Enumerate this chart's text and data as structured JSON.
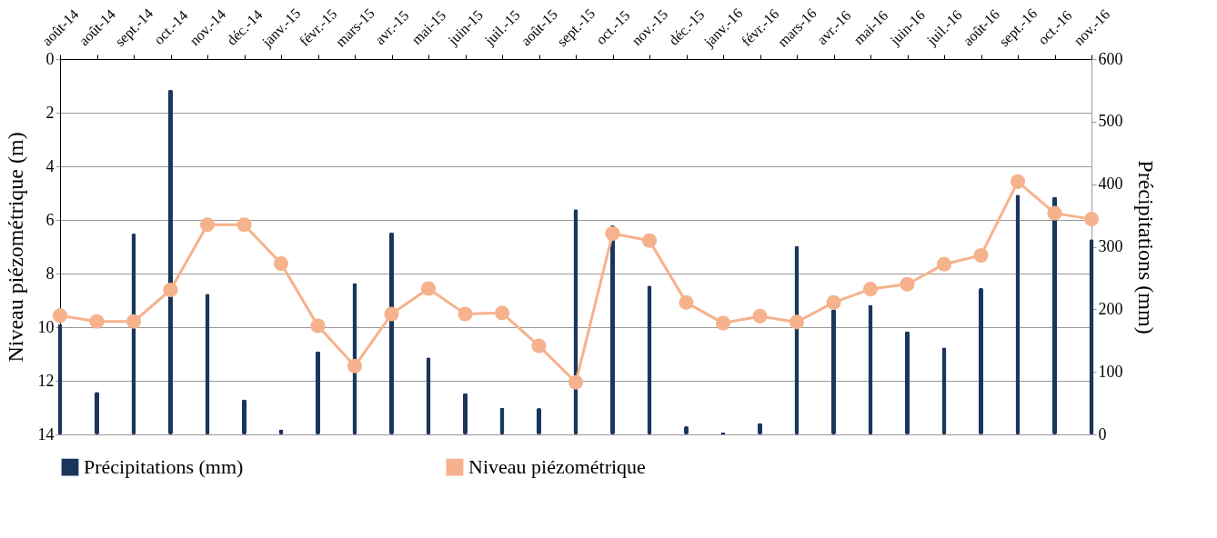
{
  "chart_data": {
    "type": "bar",
    "categories": [
      "août-14",
      "août-14",
      "sept.-14",
      "oct.-14",
      "nov.-14",
      "déc.-14",
      "janv.-15",
      "févr.-15",
      "mars-15",
      "avr.-15",
      "mai-15",
      "juin-15",
      "juil.-15",
      "août-15",
      "sept.-15",
      "oct.-15",
      "nov.-15",
      "déc.-15",
      "janv.-16",
      "févr.-16",
      "mars-16",
      "avr.-16",
      "mai-16",
      "juin-16",
      "juil.-16",
      "août-16",
      "sept.-16",
      "oct.-16",
      "nov.-16"
    ],
    "ylabel": "Niveau piézométrique (m)",
    "y2label": "Précipitations (mm)",
    "ylim": [
      14,
      0
    ],
    "yticks": [
      0,
      2,
      4,
      6,
      8,
      10,
      12,
      14
    ],
    "y2lim": [
      0,
      600
    ],
    "y2ticks": [
      0,
      100,
      200,
      300,
      400,
      500,
      600
    ],
    "grid": "y",
    "legend": "bottom",
    "series": [
      {
        "name": "Précipitations (mm)",
        "type": "bar",
        "axis": "y2",
        "color": "#1b365d",
        "values": [
          176,
          68,
          321,
          551,
          225,
          56,
          8,
          133,
          242,
          323,
          123,
          66,
          43,
          42,
          360,
          334,
          238,
          13,
          3,
          18,
          301,
          200,
          207,
          165,
          139,
          234,
          383,
          380,
          312
        ]
      },
      {
        "name": "Niveau piézométrique",
        "type": "line",
        "axis": "y",
        "color": "#f6b28c",
        "marker": "circle",
        "line_style": "solid",
        "values": [
          9.57,
          9.79,
          9.79,
          8.61,
          6.18,
          6.18,
          7.63,
          9.95,
          11.45,
          9.51,
          8.56,
          9.51,
          9.47,
          10.7,
          12.06,
          6.51,
          6.77,
          9.08,
          9.85,
          9.59,
          9.81,
          9.08,
          8.58,
          8.4,
          7.65,
          7.32,
          4.57,
          5.75,
          5.97
        ]
      }
    ]
  }
}
